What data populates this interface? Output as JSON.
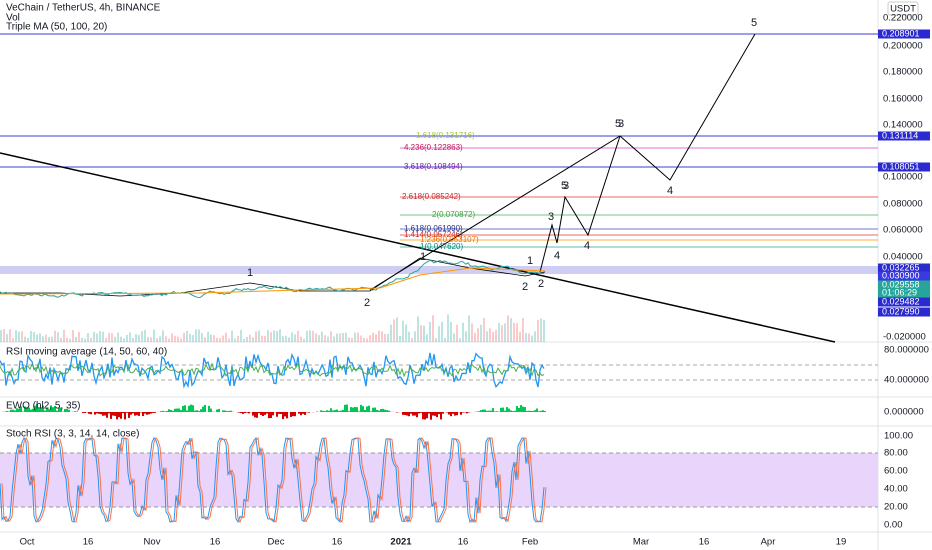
{
  "header": {
    "title": "VeChain / TetherUS, 4h, BINANCE",
    "indicators": [
      "Vol",
      "Triple MA (50, 100, 20)"
    ],
    "currency": "USDT"
  },
  "price_axis": [
    "0.220000",
    "0.200000",
    "0.180000",
    "0.160000",
    "0.140000",
    "0.100000",
    "0.080000",
    "0.060000",
    "0.040000",
    "-0.020000"
  ],
  "price_tags": [
    "0.208901",
    "0.131114",
    "0.108051",
    "0.032265",
    "0.030900",
    "0.029558",
    "01:06:29",
    "0.029482",
    "0.027990"
  ],
  "fib_labels": [
    "1.618(0.131716)",
    "4.236(0.122863)",
    "3.618(0.108494)",
    "2.618(0.085242)",
    "2(0.070872)",
    "1.618(0.061990)",
    "1.414(0.057246)",
    "1.236(0.053107)",
    "1(0.047620)"
  ],
  "waves": [
    "1",
    "2",
    "1",
    "1",
    "2",
    "2",
    "3",
    "4",
    "5",
    "3",
    "4",
    "5",
    "3",
    "4",
    "5"
  ],
  "panes": [
    {
      "label": "RSI moving average (14, 50, 60, 40)",
      "axis": [
        "80.000000",
        "40.000000"
      ]
    },
    {
      "label": "EWO (hl2, 5, 35)",
      "axis": [
        "0.000000"
      ]
    },
    {
      "label": "Stoch RSI (3, 3, 14, 14, close)",
      "axis": [
        "100.00",
        "80.00",
        "60.00",
        "40.00",
        "20.00",
        "0.00"
      ]
    }
  ],
  "time_axis": [
    "Oct",
    "16",
    "Nov",
    "16",
    "Dec",
    "16",
    "2021",
    "16",
    "Feb",
    "Mar",
    "16",
    "Apr",
    "19"
  ]
}
